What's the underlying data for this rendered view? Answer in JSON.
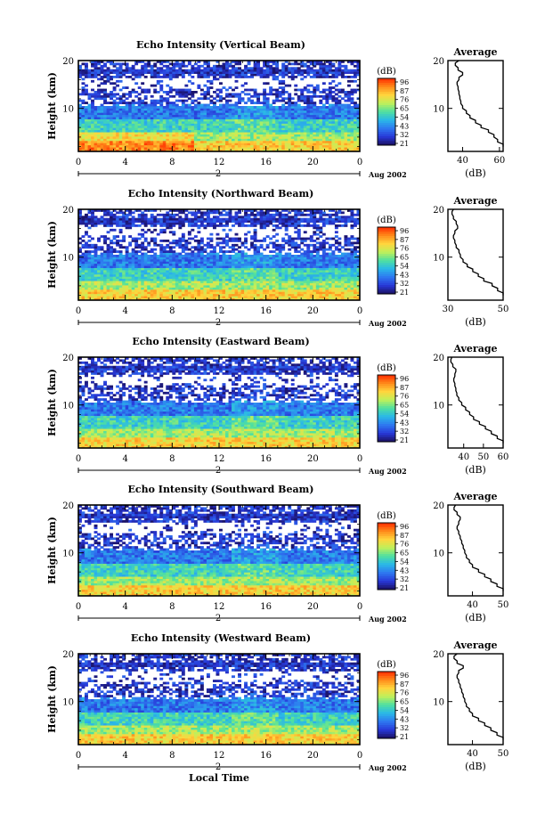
{
  "figure": {
    "time_label": "Local Time",
    "colorbar_unit": "(dB)",
    "colorbar_ticks": [
      "96",
      "87",
      "76",
      "65",
      "54",
      "43",
      "32",
      "21"
    ],
    "colorbar_colors": [
      "#ff2a00",
      "#ff8a1a",
      "#ffd53d",
      "#bff05a",
      "#4fe0a0",
      "#2ab8e8",
      "#2e78f0",
      "#2838d8",
      "#1a1060"
    ],
    "height_label": "Height (km)",
    "height_ticks": [
      "10",
      "20"
    ],
    "time_ticks": [
      "0",
      "4",
      "8",
      "12",
      "16",
      "20",
      "0"
    ],
    "day_marker": "2",
    "month_label": "Aug 2002",
    "profile_title": "Average",
    "profile_unit": "(dB)"
  },
  "chart_data": [
    {
      "type": "heatmap",
      "title": "Echo Intensity (Vertical Beam)",
      "xlabel": "",
      "ylabel": "Height (km)",
      "x_range_hours": [
        0,
        24
      ],
      "ylim": [
        1,
        20
      ],
      "color_range_db": [
        21,
        96
      ],
      "average_profile": {
        "title": "Average",
        "xlabel": "(dB)",
        "x_ticks": [
          "40",
          "60"
        ],
        "xlim": [
          32,
          62
        ],
        "height_km": [
          2,
          3,
          4,
          5,
          6,
          7,
          8,
          9,
          10,
          11,
          12,
          13,
          14,
          15,
          16,
          17,
          18,
          19,
          20
        ],
        "db": [
          62,
          59,
          57,
          54,
          50,
          47,
          44,
          42,
          40,
          39,
          38.5,
          38,
          37.5,
          37,
          38,
          40,
          37.5,
          36,
          38
        ]
      }
    },
    {
      "type": "heatmap",
      "title": "Echo Intensity (Northward Beam)",
      "xlabel": "",
      "ylabel": "Height (km)",
      "x_range_hours": [
        0,
        24
      ],
      "ylim": [
        1,
        20
      ],
      "color_range_db": [
        21,
        96
      ],
      "average_profile": {
        "title": "Average",
        "xlabel": "(dB)",
        "x_ticks": [
          "30",
          "50"
        ],
        "xlim": [
          30,
          50
        ],
        "height_km": [
          2,
          3,
          4,
          5,
          6,
          7,
          8,
          9,
          10,
          11,
          12,
          13,
          14,
          15,
          16,
          17,
          18,
          19,
          20
        ],
        "db": [
          50,
          48,
          46,
          43,
          41,
          39,
          37,
          35.5,
          34.5,
          34,
          33,
          32.5,
          32,
          32.5,
          33.5,
          33,
          32,
          31.5,
          32
        ]
      }
    },
    {
      "type": "heatmap",
      "title": "Echo Intensity (Eastward Beam)",
      "xlabel": "",
      "ylabel": "Height (km)",
      "x_range_hours": [
        0,
        24
      ],
      "ylim": [
        1,
        20
      ],
      "color_range_db": [
        21,
        96
      ],
      "average_profile": {
        "title": "Average",
        "xlabel": "(dB)",
        "x_ticks": [
          "40",
          "50",
          "60"
        ],
        "xlim": [
          32,
          60
        ],
        "height_km": [
          2,
          3,
          4,
          5,
          6,
          7,
          8,
          9,
          10,
          11,
          12,
          13,
          14,
          15,
          16,
          17,
          18,
          19,
          20
        ],
        "db": [
          60,
          57,
          54,
          51,
          48,
          45,
          43,
          41,
          39,
          37.5,
          36.5,
          36,
          35.5,
          35,
          35.5,
          36,
          34.5,
          33.5,
          34
        ]
      }
    },
    {
      "type": "heatmap",
      "title": "Echo Intensity (Southward Beam)",
      "xlabel": "",
      "ylabel": "Height (km)",
      "x_range_hours": [
        0,
        24
      ],
      "ylim": [
        1,
        20
      ],
      "color_range_db": [
        21,
        96
      ],
      "average_profile": {
        "title": "Average",
        "xlabel": "(dB)",
        "x_ticks": [
          "40",
          "50"
        ],
        "xlim": [
          32,
          50
        ],
        "height_km": [
          2,
          3,
          4,
          5,
          6,
          7,
          8,
          9,
          10,
          11,
          12,
          13,
          14,
          15,
          16,
          17,
          18,
          19,
          20
        ],
        "db": [
          50,
          48,
          46,
          44,
          42,
          40,
          39,
          38,
          37.5,
          37,
          36.5,
          36,
          35.5,
          35,
          35.5,
          36,
          35,
          34,
          34.5
        ]
      }
    },
    {
      "type": "heatmap",
      "title": "Echo Intensity (Westward Beam)",
      "xlabel": "Local Time",
      "ylabel": "Height (km)",
      "x_range_hours": [
        0,
        24
      ],
      "ylim": [
        1,
        20
      ],
      "color_range_db": [
        21,
        96
      ],
      "average_profile": {
        "title": "Average",
        "xlabel": "(dB)",
        "x_ticks": [
          "40",
          "50"
        ],
        "xlim": [
          32,
          50
        ],
        "height_km": [
          2,
          3,
          4,
          5,
          6,
          7,
          8,
          9,
          10,
          11,
          12,
          13,
          14,
          15,
          16,
          17,
          18,
          19,
          20
        ],
        "db": [
          50,
          48,
          46,
          44,
          42,
          40,
          39,
          38,
          37.5,
          37,
          36.5,
          36,
          35.5,
          35,
          35.5,
          37,
          35,
          34,
          35
        ]
      }
    }
  ]
}
